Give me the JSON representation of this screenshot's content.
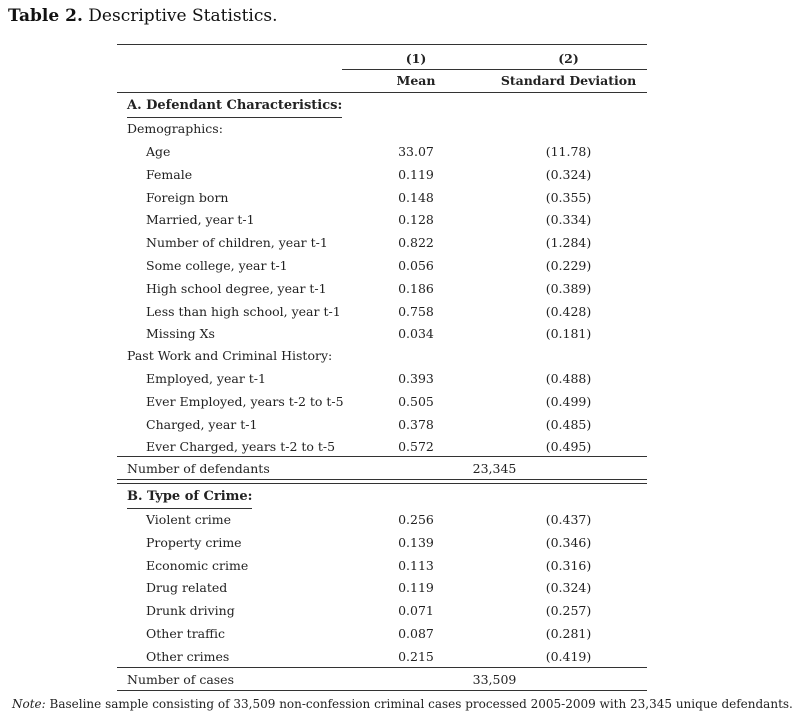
{
  "caption": {
    "label": "Table 2.",
    "title": "Descriptive Statistics."
  },
  "header": {
    "col1_num": "(1)",
    "col2_num": "(2)",
    "col1_name": "Mean",
    "col2_name": "Standard Deviation"
  },
  "sectionA": {
    "title": "A. Defendant Characteristics:",
    "group1": "Demographics:",
    "rows1": [
      {
        "label": "Age",
        "mean": "33.07",
        "sd": "(11.78)"
      },
      {
        "label": "Female",
        "mean": "0.119",
        "sd": "(0.324)"
      },
      {
        "label": "Foreign born",
        "mean": "0.148",
        "sd": "(0.355)"
      },
      {
        "label": "Married, year t-1",
        "mean": "0.128",
        "sd": "(0.334)"
      },
      {
        "label": "Number of children, year t-1",
        "mean": "0.822",
        "sd": "(1.284)"
      },
      {
        "label": "Some college, year t-1",
        "mean": "0.056",
        "sd": "(0.229)"
      },
      {
        "label": "High school degree, year t-1",
        "mean": "0.186",
        "sd": "(0.389)"
      },
      {
        "label": "Less than high school, year t-1",
        "mean": "0.758",
        "sd": "(0.428)"
      },
      {
        "label": "Missing Xs",
        "mean": "0.034",
        "sd": "(0.181)"
      }
    ],
    "group2": "Past Work and Criminal History:",
    "rows2": [
      {
        "label": "Employed, year t-1",
        "mean": "0.393",
        "sd": "(0.488)"
      },
      {
        "label": "Ever Employed, years t-2 to t-5",
        "mean": "0.505",
        "sd": "(0.499)"
      },
      {
        "label": "Charged, year t-1",
        "mean": "0.378",
        "sd": "(0.485)"
      },
      {
        "label": "Ever Charged, years t-2 to t-5",
        "mean": "0.572",
        "sd": "(0.495)"
      }
    ],
    "count_label": "Number of defendants",
    "count_value": "23,345"
  },
  "sectionB": {
    "title": "B. Type of Crime:",
    "rows": [
      {
        "label": "Violent crime",
        "mean": "0.256",
        "sd": "(0.437)"
      },
      {
        "label": "Property crime",
        "mean": "0.139",
        "sd": "(0.346)"
      },
      {
        "label": "Economic crime",
        "mean": "0.113",
        "sd": "(0.316)"
      },
      {
        "label": "Drug related",
        "mean": "0.119",
        "sd": "(0.324)"
      },
      {
        "label": "Drunk driving",
        "mean": "0.071",
        "sd": "(0.257)"
      },
      {
        "label": "Other traffic",
        "mean": "0.087",
        "sd": "(0.281)"
      },
      {
        "label": "Other crimes",
        "mean": "0.215",
        "sd": "(0.419)"
      }
    ],
    "count_label": "Number of cases",
    "count_value": "33,509"
  },
  "note": {
    "prefix": "Note:",
    "text": " Baseline sample consisting of 33,509 non-confession criminal cases processed 2005-2009 with 23,345 unique defendants."
  }
}
